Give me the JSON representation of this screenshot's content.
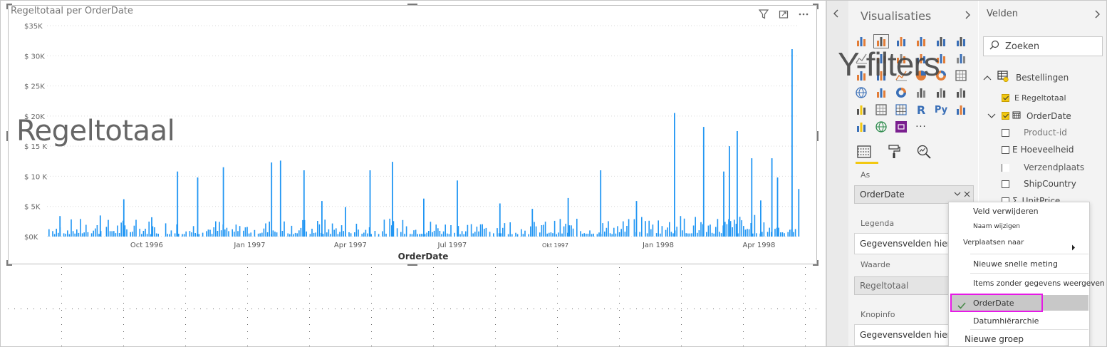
{
  "visual": {
    "title": "Regeltotaal per OrderDate",
    "overlay_label": "Regeltotaal",
    "icons": [
      "filter-icon",
      "focus-mode-icon",
      "more-options-icon"
    ]
  },
  "chart_data": {
    "type": "bar",
    "title": "Regeltotaal per OrderDate",
    "xlabel": "OrderDate",
    "ylabel": "",
    "ylim": [
      0,
      35000
    ],
    "y_ticks": [
      "$0K",
      "$ 5K",
      "$ 10 K",
      "$ 15 K",
      "$ 20K",
      "$ 25K",
      "$ 30K",
      "$35K"
    ],
    "x_ticks": [
      "Oct 1996",
      "Jan 1997",
      "Apr 1997",
      "Jul 1997",
      "Okt 1997",
      "Jan 1998",
      "Apr 1998"
    ],
    "color": "#2196f3",
    "grid": true,
    "peaks": [
      {
        "x": "1996-07-15",
        "y": 3400
      },
      {
        "x": "1996-08-20",
        "y": 3500
      },
      {
        "x": "1996-09-10",
        "y": 6200
      },
      {
        "x": "1996-10-05",
        "y": 3200
      },
      {
        "x": "1996-10-28",
        "y": 10800
      },
      {
        "x": "1996-11-15",
        "y": 9800
      },
      {
        "x": "1996-12-08",
        "y": 11500
      },
      {
        "x": "1997-01-20",
        "y": 12300
      },
      {
        "x": "1997-01-28",
        "y": 12600
      },
      {
        "x": "1997-02-18",
        "y": 11000
      },
      {
        "x": "1997-03-06",
        "y": 5900
      },
      {
        "x": "1997-03-27",
        "y": 4900
      },
      {
        "x": "1997-04-18",
        "y": 11000
      },
      {
        "x": "1997-05-08",
        "y": 12400
      },
      {
        "x": "1997-06-05",
        "y": 6300
      },
      {
        "x": "1997-07-05",
        "y": 9300
      },
      {
        "x": "1997-08-12",
        "y": 5500
      },
      {
        "x": "1997-09-10",
        "y": 4600
      },
      {
        "x": "1997-10-12",
        "y": 6400
      },
      {
        "x": "1997-11-10",
        "y": 11000
      },
      {
        "x": "1997-12-12",
        "y": 5900
      },
      {
        "x": "1998-01-15",
        "y": 20500
      },
      {
        "x": "1998-02-10",
        "y": 18200
      },
      {
        "x": "1998-02-28",
        "y": 10800
      },
      {
        "x": "1998-03-05",
        "y": 15000
      },
      {
        "x": "1998-03-12",
        "y": 17500
      },
      {
        "x": "1998-03-25",
        "y": 13000
      },
      {
        "x": "1998-04-02",
        "y": 6000
      },
      {
        "x": "1998-04-12",
        "y": 13000
      },
      {
        "x": "1998-04-17",
        "y": 9800
      },
      {
        "x": "1998-04-30",
        "y": 31100
      },
      {
        "x": "1998-05-06",
        "y": 7900
      }
    ]
  },
  "viz_pane": {
    "title": "Visualisaties",
    "overlay_text": "Y-filters",
    "wells": {
      "axis_label": "As",
      "axis_value": "OrderDate",
      "legend_label": "Legenda",
      "legend_placeholder": "Gegevensvelden hier toevoegen",
      "value_label": "Waarde",
      "value_value": "Regeltotaal",
      "tooltip_label": "Knopinfo",
      "tooltip_placeholder": "Gegevensvelden hier toevoegen"
    }
  },
  "fields_pane": {
    "title": "Velden",
    "search_placeholder": "Zoeken",
    "table_name": "Bestellingen",
    "fields": [
      {
        "label": "Regeltotaal",
        "prefix": "E",
        "checked": true
      },
      {
        "label": "OrderDate",
        "checked": true
      },
      {
        "label": "Product-id",
        "checked": false
      },
      {
        "label": "Hoeveelheid",
        "prefix": "E",
        "checked": false
      },
      {
        "label": "Verzendplaats",
        "checked": false
      },
      {
        "label": "ShipCountry",
        "checked": false
      },
      {
        "label": "UnitPrice",
        "prefix": "Σ",
        "checked": false
      }
    ]
  },
  "context_menu": {
    "items": [
      "Veld verwijderen",
      "Naam wijzigen",
      "Verplaatsen naar",
      "Nieuwe snelle meting",
      "Items zonder gegevens weergeven",
      "OrderDate",
      "Datumhiërarchie",
      "Nieuwe groep"
    ],
    "selected": "OrderDate",
    "highlight_color": "#e619e6"
  }
}
